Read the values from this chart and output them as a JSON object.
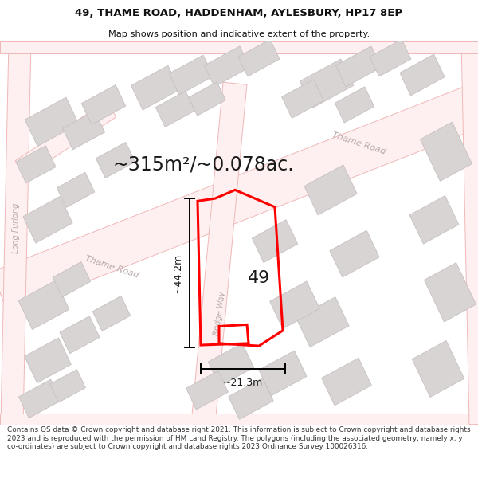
{
  "title_line1": "49, THAME ROAD, HADDENHAM, AYLESBURY, HP17 8EP",
  "title_line2": "Map shows position and indicative extent of the property.",
  "area_text": "~315m²/~0.078ac.",
  "property_number": "49",
  "dim_width": "~21.3m",
  "dim_height": "~44.2m",
  "footer": "Contains OS data © Crown copyright and database right 2021. This information is subject to Crown copyright and database rights 2023 and is reproduced with the permission of HM Land Registry. The polygons (including the associated geometry, namely x, y co-ordinates) are subject to Crown copyright and database rights 2023 Ordnance Survey 100026316.",
  "bg_color": "#ffffff",
  "map_bg": "#faf6f6",
  "road_line_color": "#f0b8b8",
  "road_line_color2": "#e8a8a8",
  "building_fill": "#d8d4d4",
  "building_edge": "#c8c0c0",
  "property_color": "#ff0000",
  "street_text_color": "#b8a8a8",
  "annotation_color": "#1a1a1a",
  "footer_color": "#333333",
  "title_color": "#111111",
  "road_lw": 0.8,
  "building_lw": 0.6,
  "title_fontsize": 9.5,
  "subtitle_fontsize": 8.2,
  "footer_fontsize": 6.4,
  "area_fontsize": 17,
  "number_fontsize": 16,
  "dim_fontsize": 9,
  "street_fontsize": 8,
  "small_street_fontsize": 7
}
